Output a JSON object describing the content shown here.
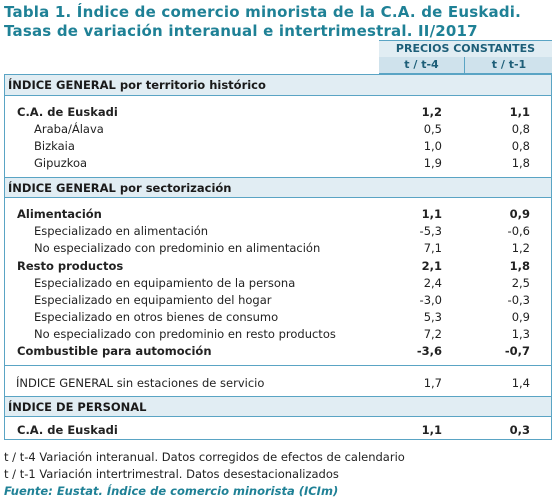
{
  "title": {
    "line1": "Tabla 1. Índice de comercio minorista de la C.A. de Euskadi.",
    "line2": "Tasas de variación interanual e intertrimestral. II/2017"
  },
  "header": {
    "group": "PRECIOS CONSTANTES",
    "col1": "t / t-4",
    "col2": "t / t-1"
  },
  "sections": {
    "territorio": "ÍNDICE GENERAL por territorio histórico",
    "sector": "ÍNDICE GENERAL por sectorización",
    "personal": "ÍNDICE DE PERSONAL"
  },
  "rows": {
    "euskadi": {
      "label": "C.A. de Euskadi",
      "v1": "1,2",
      "v2": "1,1"
    },
    "araba": {
      "label": "Araba/Álava",
      "v1": "0,5",
      "v2": "0,8"
    },
    "bizkaia": {
      "label": "Bizkaia",
      "v1": "1,0",
      "v2": "0,8"
    },
    "gipuzkoa": {
      "label": "Gipuzkoa",
      "v1": "1,9",
      "v2": "1,8"
    },
    "alimentacion": {
      "label": "Alimentación",
      "v1": "1,1",
      "v2": "0,9"
    },
    "esp_alim": {
      "label": "Especializado en alimentación",
      "v1": "-5,3",
      "v2": "-0,6"
    },
    "noesp_alim": {
      "label": "No especializado con predominio en alimentación",
      "v1": "7,1",
      "v2": "1,2"
    },
    "resto": {
      "label": "Resto productos",
      "v1": "2,1",
      "v2": "1,8"
    },
    "equip_persona": {
      "label": "Especializado en equipamiento de la persona",
      "v1": "2,4",
      "v2": "2,5"
    },
    "equip_hogar": {
      "label": "Especializado en equipamiento del hogar",
      "v1": "-3,0",
      "v2": "-0,3"
    },
    "otros_bienes": {
      "label": "Especializado en otros bienes de consumo",
      "v1": "5,3",
      "v2": "0,9"
    },
    "noesp_resto": {
      "label": "No especializado con predominio en resto productos",
      "v1": "7,2",
      "v2": "1,3"
    },
    "combustible": {
      "label": "Combustible para automoción",
      "v1": "-3,6",
      "v2": "-0,7"
    },
    "sin_estaciones": {
      "label": "ÍNDICE GENERAL sin estaciones de servicio",
      "v1": "1,7",
      "v2": "1,4"
    },
    "personal_euskadi": {
      "label": "C.A. de Euskadi",
      "v1": "1,1",
      "v2": "0,3"
    }
  },
  "notes": {
    "n1": "t / t-4 Variación interanual. Datos corregidos de efectos de calendario",
    "n2": "t / t-1 Variación intertrimestral. Datos desestacionalizados",
    "source": "Fuente: Eustat. Índice de comercio minorista (ICIm)"
  }
}
